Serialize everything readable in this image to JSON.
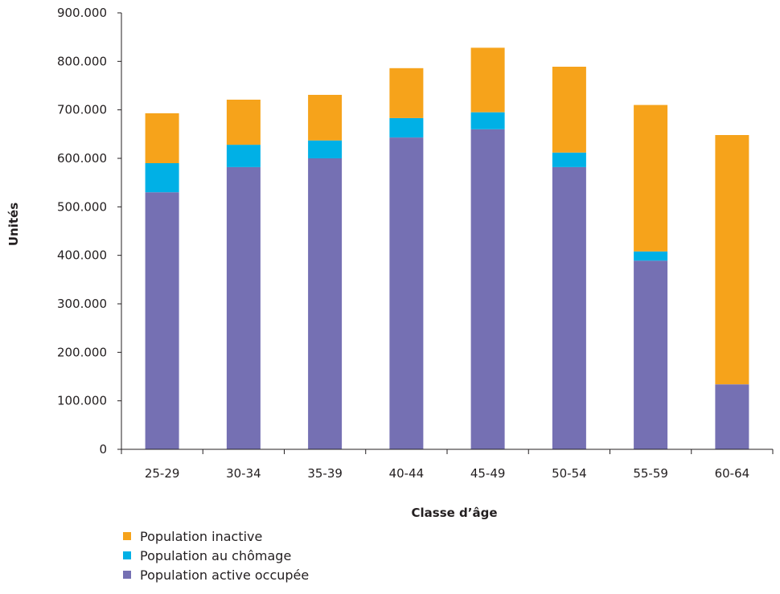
{
  "chart_data": {
    "type": "bar",
    "stacked": true,
    "categories": [
      "25-29",
      "30-34",
      "35-39",
      "40-44",
      "45-49",
      "50-54",
      "55-59",
      "60-64"
    ],
    "series": [
      {
        "name": "Population active occupée",
        "color": "#7570b3",
        "values": [
          530000,
          582000,
          600000,
          643000,
          660000,
          582000,
          389000,
          134000
        ]
      },
      {
        "name": "Population au chômage",
        "color": "#00b0e6",
        "values": [
          60000,
          46000,
          37000,
          40000,
          35000,
          30000,
          19000,
          0
        ]
      },
      {
        "name": "Population inactive",
        "color": "#f6a31b",
        "values": [
          103000,
          93000,
          94000,
          103000,
          133000,
          177000,
          302000,
          514000
        ]
      }
    ],
    "xlabel": "Classe d’âge",
    "ylabel": "Unités",
    "ylim": [
      0,
      900000
    ],
    "yticks": [
      "0",
      "100.000",
      "200.000",
      "300.000",
      "400.000",
      "500.000",
      "600.000",
      "700.000",
      "800.000",
      "900.000"
    ],
    "grid": false,
    "legend_position": "bottom-left",
    "legend_order": [
      "Population inactive",
      "Population au chômage",
      "Population active occupée"
    ]
  }
}
